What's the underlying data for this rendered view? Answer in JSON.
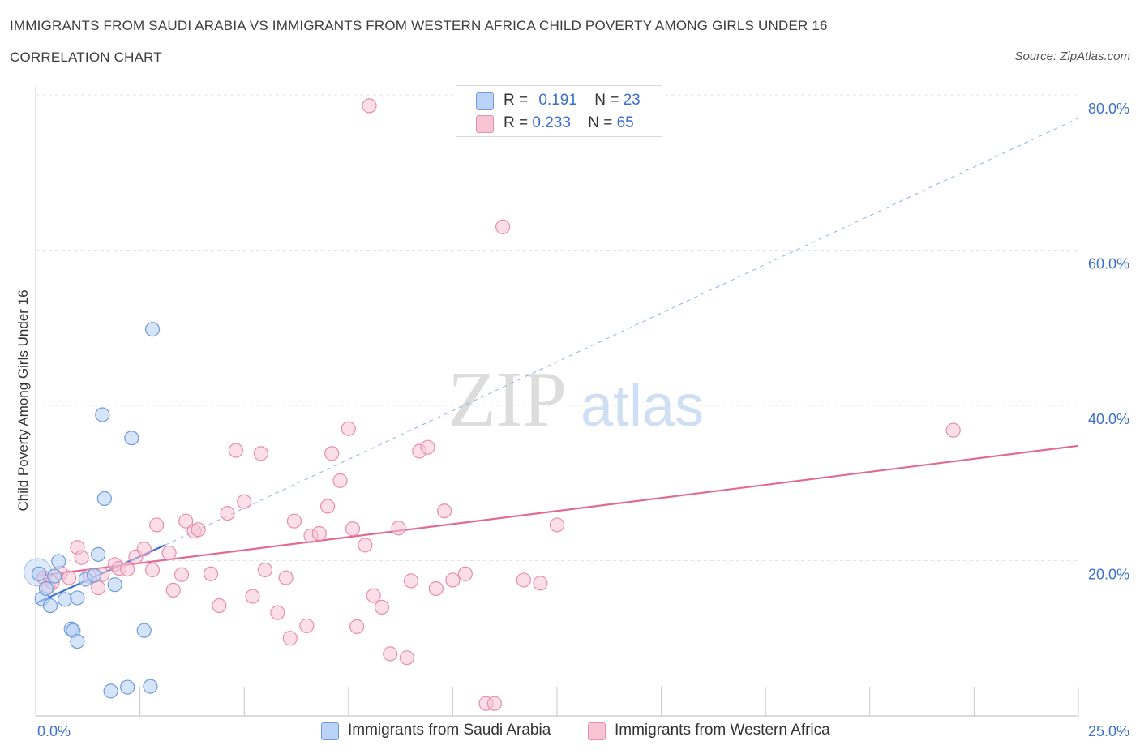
{
  "header": {
    "title": "IMMIGRANTS FROM SAUDI ARABIA VS IMMIGRANTS FROM WESTERN AFRICA CHILD POVERTY AMONG GIRLS UNDER 16",
    "subtitle": "CORRELATION CHART",
    "source": "Source: ZipAtlas.com"
  },
  "legend": {
    "r_label": "R =",
    "n_label": "N =",
    "saudi": {
      "r": "0.191",
      "n": "23"
    },
    "wafrica": {
      "r": "0.233",
      "n": "65"
    }
  },
  "watermark": {
    "zip": "ZIP",
    "atlas": "atlas"
  },
  "colors": {
    "saudi_fill": "#b9d2f5",
    "saudi_stroke": "#6f9bdb",
    "saudi_line": "#3a6fcf",
    "wafrica_fill": "#f8c3d3",
    "wafrica_stroke": "#e68fab",
    "wafrica_line": "#e06a95",
    "tick_label": "#3a6fcf",
    "grid": "#e3e3e3"
  },
  "chart_data": {
    "type": "scatter",
    "title": "IMMIGRANTS FROM SAUDI ARABIA VS IMMIGRANTS FROM WESTERN AFRICA CHILD POVERTY AMONG GIRLS UNDER 16",
    "subtitle": "CORRELATION CHART",
    "xlabel": "",
    "ylabel": "Child Poverty Among Girls Under 16",
    "xlim": [
      0,
      25
    ],
    "ylim": [
      0,
      80
    ],
    "x_tick_labels": [
      "0.0%",
      "25.0%"
    ],
    "y_ticks": [
      20,
      40,
      60,
      80
    ],
    "y_tick_labels": [
      "20.0%",
      "40.0%",
      "60.0%",
      "80.0%"
    ],
    "grid": true,
    "legend_position": "top-center",
    "series": [
      {
        "name": "Immigrants from Saudi Arabia",
        "points": [
          [
            0.08,
            18.3
          ],
          [
            0.15,
            15.1
          ],
          [
            0.25,
            16.4
          ],
          [
            0.35,
            14.2
          ],
          [
            0.45,
            18.0
          ],
          [
            0.55,
            19.9
          ],
          [
            0.7,
            15.0
          ],
          [
            0.85,
            11.2
          ],
          [
            0.9,
            11.0
          ],
          [
            1.0,
            15.2
          ],
          [
            1.0,
            9.6
          ],
          [
            1.2,
            17.6
          ],
          [
            1.4,
            18.1
          ],
          [
            1.5,
            20.8
          ],
          [
            1.6,
            38.8
          ],
          [
            1.65,
            28.0
          ],
          [
            1.8,
            3.2
          ],
          [
            1.9,
            16.9
          ],
          [
            2.2,
            3.7
          ],
          [
            2.3,
            35.8
          ],
          [
            2.6,
            11.0
          ],
          [
            2.75,
            3.8
          ],
          [
            2.8,
            49.8
          ]
        ],
        "trend": {
          "x": [
            0,
            3.1
          ],
          "y": [
            14.5,
            22.0
          ]
        },
        "trend_extension": {
          "x": [
            3.1,
            25
          ],
          "y": [
            22.0,
            77.0
          ]
        }
      },
      {
        "name": "Immigrants from Western Africa",
        "points": [
          [
            0.2,
            17.8
          ],
          [
            0.3,
            16.6
          ],
          [
            0.4,
            17.2
          ],
          [
            0.6,
            18.4
          ],
          [
            0.8,
            17.8
          ],
          [
            1.0,
            21.7
          ],
          [
            1.1,
            20.4
          ],
          [
            1.3,
            18.0
          ],
          [
            1.5,
            16.5
          ],
          [
            1.6,
            18.2
          ],
          [
            1.9,
            19.5
          ],
          [
            2.0,
            19.0
          ],
          [
            2.2,
            18.9
          ],
          [
            2.4,
            20.5
          ],
          [
            2.6,
            21.5
          ],
          [
            2.8,
            18.8
          ],
          [
            2.9,
            24.6
          ],
          [
            3.2,
            21.0
          ],
          [
            3.3,
            16.2
          ],
          [
            3.5,
            18.2
          ],
          [
            3.6,
            25.1
          ],
          [
            3.8,
            23.8
          ],
          [
            3.9,
            24.0
          ],
          [
            4.2,
            18.3
          ],
          [
            4.4,
            14.2
          ],
          [
            4.6,
            26.1
          ],
          [
            4.8,
            34.2
          ],
          [
            5.0,
            27.6
          ],
          [
            5.2,
            15.4
          ],
          [
            5.4,
            33.8
          ],
          [
            5.5,
            18.8
          ],
          [
            5.8,
            13.3
          ],
          [
            6.0,
            17.8
          ],
          [
            6.1,
            10.0
          ],
          [
            6.2,
            25.1
          ],
          [
            6.5,
            11.6
          ],
          [
            6.6,
            23.2
          ],
          [
            6.8,
            23.5
          ],
          [
            7.0,
            27.0
          ],
          [
            7.1,
            33.8
          ],
          [
            7.3,
            30.3
          ],
          [
            7.5,
            37.0
          ],
          [
            7.6,
            24.1
          ],
          [
            7.7,
            11.5
          ],
          [
            7.9,
            22.0
          ],
          [
            8.0,
            78.6
          ],
          [
            8.1,
            15.5
          ],
          [
            8.3,
            14.0
          ],
          [
            8.5,
            8.0
          ],
          [
            8.7,
            24.2
          ],
          [
            8.9,
            7.5
          ],
          [
            9.0,
            17.4
          ],
          [
            9.2,
            34.1
          ],
          [
            9.4,
            34.6
          ],
          [
            9.6,
            16.4
          ],
          [
            9.8,
            26.4
          ],
          [
            10.0,
            17.5
          ],
          [
            10.3,
            18.3
          ],
          [
            10.8,
            1.6
          ],
          [
            11.0,
            1.6
          ],
          [
            11.2,
            63.0
          ],
          [
            11.7,
            17.5
          ],
          [
            12.1,
            17.1
          ],
          [
            12.5,
            24.6
          ],
          [
            22.0,
            36.8
          ]
        ],
        "trend": {
          "x": [
            0,
            25
          ],
          "y": [
            18.0,
            34.8
          ]
        }
      }
    ]
  }
}
